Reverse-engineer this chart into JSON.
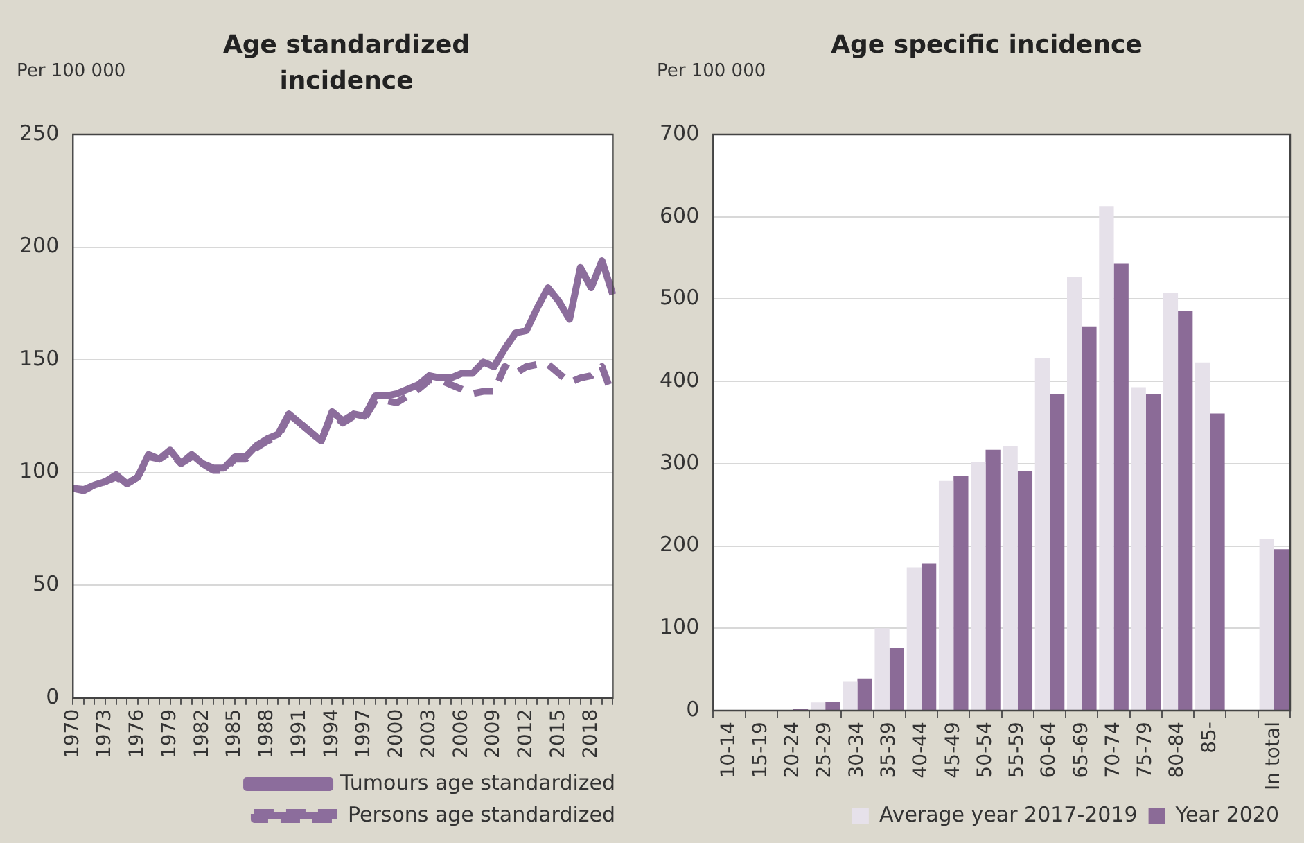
{
  "chart_data": [
    {
      "type": "line",
      "title": "Age standardized incidence",
      "ylabel": "Per 100 000",
      "categories": [
        "1970",
        null,
        null,
        "1973",
        null,
        null,
        "1976",
        null,
        null,
        "1979",
        null,
        null,
        "1982",
        null,
        null,
        "1985",
        null,
        null,
        "1988",
        null,
        null,
        "1991",
        null,
        null,
        "1994",
        null,
        null,
        "1997",
        null,
        null,
        "2000",
        null,
        null,
        "2003",
        null,
        null,
        "2006",
        null,
        null,
        "2009",
        null,
        null,
        "2012",
        null,
        null,
        "2015",
        null,
        null,
        "2018",
        null,
        null
      ],
      "series": [
        {
          "name": "Tumours age standardized",
          "color": "#8c6d9c",
          "line_style": "solid",
          "values": [
            93,
            92.5,
            94.5,
            96,
            99,
            95,
            98,
            108,
            106,
            110,
            104,
            108,
            104,
            102,
            102,
            107,
            107,
            112,
            115,
            117,
            126,
            122,
            118,
            114,
            127,
            123,
            126,
            125,
            134,
            134,
            135,
            137,
            139,
            143,
            142,
            142,
            144,
            144,
            149,
            147,
            155,
            162,
            163,
            173,
            182,
            176,
            168,
            191,
            182,
            194,
            179
          ]
        },
        {
          "name": "Persons age standardized",
          "color": "#8c6d9c",
          "line_style": "dashed",
          "values": [
            93,
            92,
            94.5,
            96,
            98,
            95,
            98,
            107,
            106,
            109,
            104,
            107,
            104,
            101,
            101,
            106,
            106,
            111,
            114,
            116,
            125,
            122,
            118,
            114,
            126,
            122,
            125,
            124,
            132,
            132,
            131,
            134,
            137,
            141,
            141,
            139,
            137,
            135,
            136,
            136,
            147,
            144,
            147,
            148,
            148,
            144,
            140,
            142,
            143,
            147,
            134
          ]
        }
      ],
      "ylim": [
        0,
        250
      ],
      "yticks": [
        0,
        50,
        100,
        150,
        200,
        250
      ],
      "grid": "y",
      "legend": "bottom",
      "marker": "none"
    },
    {
      "type": "bar",
      "title": "Age specific incidence",
      "ylabel": "Per 100 000",
      "categories": [
        "10-14",
        "15-19",
        "20-24",
        "25-29",
        "30-34",
        "35-39",
        "40-44",
        "45-49",
        "50-54",
        "55-59",
        "60-64",
        "65-69",
        "70-74",
        "75-79",
        "80-84",
        "85-",
        null,
        "In total"
      ],
      "series": [
        {
          "name": "Average year 2017-2019",
          "color": "#e6e1ea",
          "values": [
            1,
            1,
            null,
            10,
            35,
            100,
            174,
            279,
            302,
            321,
            428,
            527,
            613,
            393,
            508,
            423,
            null,
            208
          ]
        },
        {
          "name": "Year 2020",
          "color": "#8b6b97",
          "values": [
            1,
            1,
            2,
            11,
            39,
            76,
            179,
            285,
            317,
            291,
            385,
            467,
            543,
            385,
            486,
            361,
            null,
            196
          ]
        }
      ],
      "ylim": [
        0,
        700
      ],
      "yticks": [
        0,
        100,
        200,
        300,
        400,
        500,
        600,
        700
      ],
      "grid": "y",
      "legend": "bottom"
    }
  ]
}
